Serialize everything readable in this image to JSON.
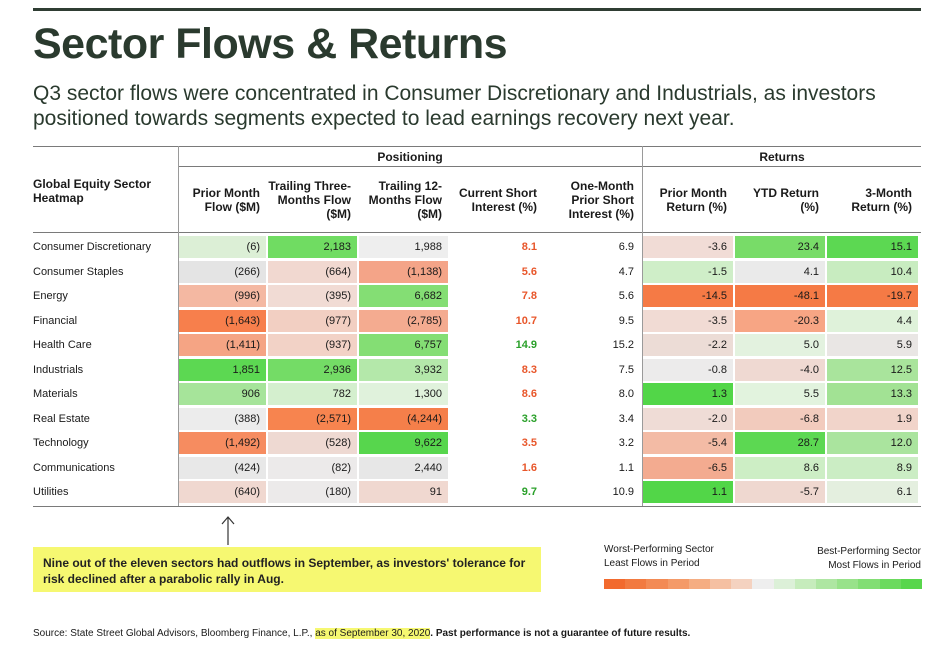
{
  "title": "Sector Flows & Returns",
  "subtitle": "Q3 sector flows were concentrated in Consumer Discretionary and Industrials, as investors positioned towards segments expected to lead earnings recovery next year.",
  "chart_data": {
    "type": "table",
    "row_header": "Global Equity Sector Heatmap",
    "groups": {
      "positioning": "Positioning",
      "returns": "Returns"
    },
    "columns": [
      "Prior Month Flow ($M)",
      "Trailing Three-Months Flow ($M)",
      "Trailing 12-Months Flow ($M)",
      "Current Short Interest (%)",
      "One-Month Prior Short Interest (%)",
      "Prior Month Return (%)",
      "YTD Return (%)",
      "3-Month Return (%)"
    ],
    "rows": [
      {
        "sector": "Consumer Discretionary",
        "values": [
          "(6)",
          "2,183",
          "1,988",
          "8.1",
          "6.9",
          "-3.6",
          "23.4",
          "15.1"
        ]
      },
      {
        "sector": "Consumer Staples",
        "values": [
          "(266)",
          "(664)",
          "(1,138)",
          "5.6",
          "4.7",
          "-1.5",
          "4.1",
          "10.4"
        ]
      },
      {
        "sector": "Energy",
        "values": [
          "(996)",
          "(395)",
          "6,682",
          "7.8",
          "5.6",
          "-14.5",
          "-48.1",
          "-19.7"
        ]
      },
      {
        "sector": "Financial",
        "values": [
          "(1,643)",
          "(977)",
          "(2,785)",
          "10.7",
          "9.5",
          "-3.5",
          "-20.3",
          "4.4"
        ]
      },
      {
        "sector": "Health Care",
        "values": [
          "(1,411)",
          "(937)",
          "6,757",
          "14.9",
          "15.2",
          "-2.2",
          "5.0",
          "5.9"
        ]
      },
      {
        "sector": "Industrials",
        "values": [
          "1,851",
          "2,936",
          "3,932",
          "8.3",
          "7.5",
          "-0.8",
          "-4.0",
          "12.5"
        ]
      },
      {
        "sector": "Materials",
        "values": [
          "906",
          "782",
          "1,300",
          "8.6",
          "8.0",
          "1.3",
          "5.5",
          "13.3"
        ]
      },
      {
        "sector": "Real Estate",
        "values": [
          "(388)",
          "(2,571)",
          "(4,244)",
          "3.3",
          "3.4",
          "-2.0",
          "-6.8",
          "1.9"
        ]
      },
      {
        "sector": "Technology",
        "values": [
          "(1,492)",
          "(528)",
          "9,622",
          "3.5",
          "3.2",
          "-5.4",
          "28.7",
          "12.0"
        ]
      },
      {
        "sector": "Communications",
        "values": [
          "(424)",
          "(82)",
          "2,440",
          "1.6",
          "1.1",
          "-6.5",
          "8.6",
          "8.9"
        ]
      },
      {
        "sector": "Utilities",
        "values": [
          "(640)",
          "(180)",
          "91",
          "9.7",
          "10.9",
          "1.1",
          "-5.7",
          "6.1"
        ]
      }
    ],
    "short_interest_colors": [
      "#e8562a",
      "#e8562a",
      "#e8562a",
      "#e8562a",
      "#2aa02a",
      "#e8562a",
      "#e8562a",
      "#2aa02a",
      "#e8562a",
      "#e8562a",
      "#2aa02a"
    ],
    "cell_colors": [
      [
        "#dcefd6",
        "#70dc62",
        "#eeeeee",
        null,
        null,
        "#f1dcd6",
        "#78dc68",
        "#5cd852"
      ],
      [
        "#e4e4e4",
        "#f1d8d0",
        "#f4a488",
        null,
        null,
        "#cfeec8",
        "#eaeaea",
        "#c8ecc0"
      ],
      [
        "#f4b8a2",
        "#f1dbd4",
        "#84de74",
        null,
        null,
        "#f57a45",
        "#f57a45",
        "#f57a45"
      ],
      [
        "#f77f4c",
        "#f2cfc2",
        "#f4ab90",
        null,
        null,
        "#f1dbd4",
        "#f7a584",
        "#dff2da"
      ],
      [
        "#f5a484",
        "#f2d2c6",
        "#84de74",
        null,
        null,
        "#ecdcd6",
        "#e3f2df",
        "#e9e6e4"
      ],
      [
        "#5cd852",
        "#74dc66",
        "#b4e8aa",
        null,
        null,
        "#ecebeb",
        "#efd9d2",
        "#a9e49c"
      ],
      [
        "#a6e49a",
        "#d4efce",
        "#e0f2dc",
        null,
        null,
        "#52d648",
        "#e2f3de",
        "#a2e294"
      ],
      [
        "#ececec",
        "#f7844f",
        "#f57f4a",
        null,
        null,
        "#efdcd6",
        "#f2cbbd",
        "#f1d4ca"
      ],
      [
        "#f68c60",
        "#eed9d2",
        "#57d64d",
        null,
        null,
        "#f3bba5",
        "#5cd852",
        "#aae49e"
      ],
      [
        "#e8e8e8",
        "#eceaea",
        "#e7e7e7",
        null,
        null,
        "#f3ab90",
        "#cdeec5",
        "#cbedc4"
      ],
      [
        "#f0d8d0",
        "#eceaea",
        "#f0d8d0",
        null,
        null,
        "#52d648",
        "#efd8d0",
        "#e4efdf"
      ]
    ]
  },
  "note": "Nine out of the eleven sectors had outflows in September, as investors' tolerance for risk declined after a parabolic rally in Aug.",
  "legend": {
    "left_title": "Worst-Performing Sector",
    "left_sub": "Least Flows in Period",
    "right_title": "Best-Performing Sector",
    "right_sub": "Most Flows in Period",
    "scale_colors": [
      "#f26a2e",
      "#f27a40",
      "#f38a54",
      "#f49a68",
      "#f5ad82",
      "#f5c0a2",
      "#f4d2c0",
      "#eeeeee",
      "#dcf0d8",
      "#c6ecbc",
      "#aee6a2",
      "#98e28a",
      "#82de74",
      "#6cda5e",
      "#58d64c"
    ]
  },
  "source": {
    "prefix": "Source: State Street Global Advisors, Bloomberg Finance, L.P., ",
    "date": "as of September 30, 2020",
    "disclaimer": ". Past performance is not a guarantee of future results."
  }
}
